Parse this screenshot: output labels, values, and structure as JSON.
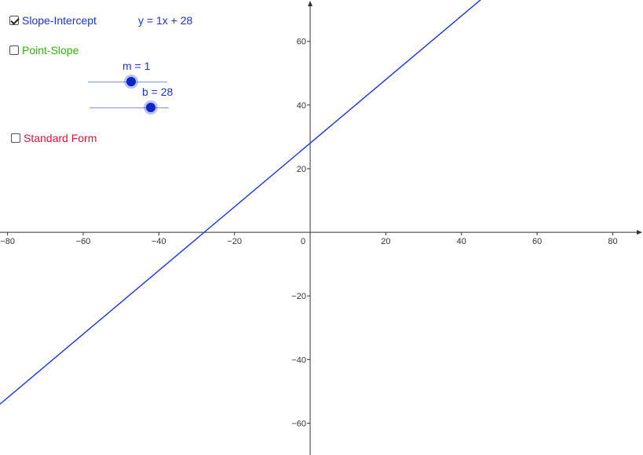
{
  "colors": {
    "line": "#1c33e6",
    "axis": "#333333",
    "slope_intercept": "#1c33d1",
    "point_slope": "#31b40c",
    "standard_form": "#dc143c",
    "slider": "#0a26c9"
  },
  "controls": {
    "slope_intercept": {
      "label": "Slope-Intercept",
      "checked": true
    },
    "point_slope": {
      "label": "Point-Slope",
      "checked": false
    },
    "standard_form": {
      "label": "Standard Form",
      "checked": false
    }
  },
  "equation": {
    "text": "y = 1x + 28"
  },
  "sliders": {
    "m": {
      "label": "m = 1",
      "value": 1
    },
    "b": {
      "label": "b = 28",
      "value": 28
    }
  },
  "chart_data": {
    "type": "line",
    "title": "",
    "xlabel": "",
    "ylabel": "",
    "xlim": [
      -82,
      88
    ],
    "ylim": [
      -70,
      73
    ],
    "x_ticks": [
      -80,
      -60,
      -40,
      -20,
      0,
      20,
      40,
      60,
      80
    ],
    "x_tick_labels": [
      "−80",
      "−60",
      "−40",
      "−20",
      "0",
      "20",
      "40",
      "60",
      "80"
    ],
    "y_ticks": [
      -60,
      -40,
      -20,
      20,
      40,
      60
    ],
    "y_tick_labels": [
      "−60",
      "−40",
      "−20",
      "20",
      "40",
      "60"
    ],
    "grid": false,
    "series": [
      {
        "slope": 1,
        "intercept": 28
      }
    ]
  }
}
